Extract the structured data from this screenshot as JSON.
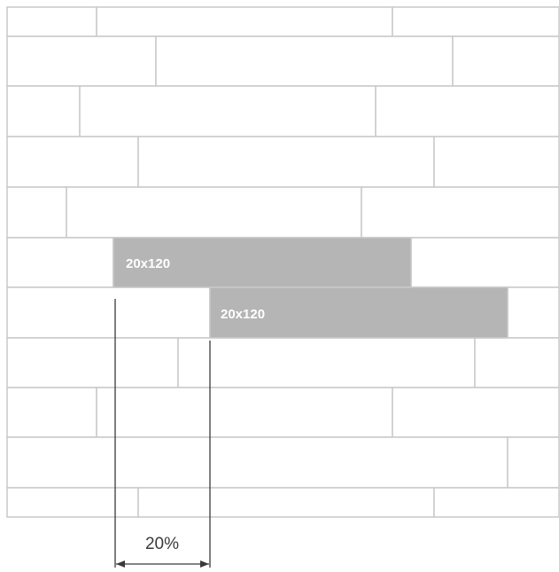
{
  "diagram": {
    "tile_size_label": "20x120",
    "offset_label": "20%",
    "colors": {
      "background": "#ffffff",
      "tile_fill": "#ffffff",
      "grout": "#c9c9c9",
      "highlight_fill": "#b5b5b5",
      "label_text": "#ffffff",
      "dimension": "#3a3a3a"
    },
    "highlighted_tiles": [
      {
        "label": "20x120"
      },
      {
        "label": "20x120"
      }
    ]
  }
}
